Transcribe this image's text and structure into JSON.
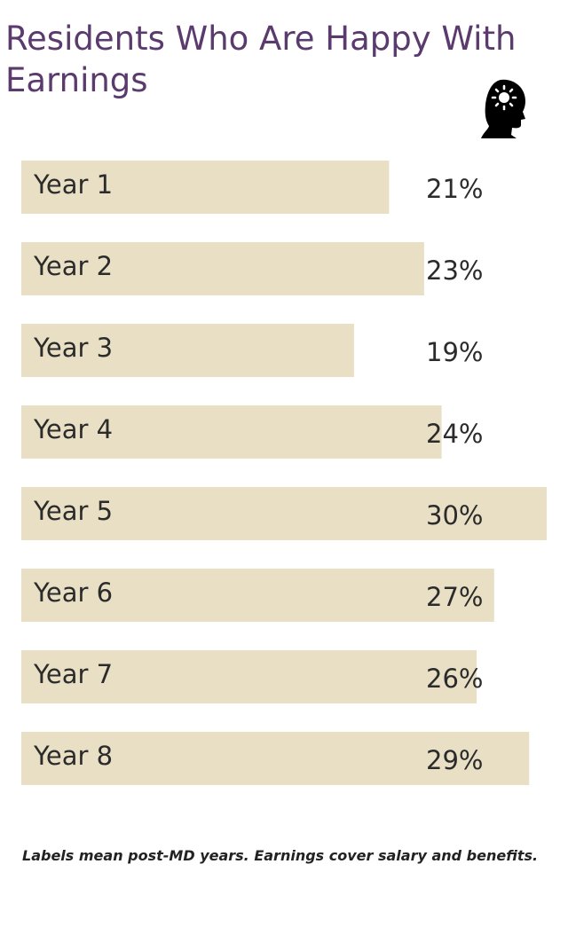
{
  "title": "Residents Who Are Happy With Earnings",
  "icon": "head-with-sun-icon",
  "colors": {
    "title": "#5b3a6e",
    "bar": "#e8dfc4",
    "text": "#2b2b2b"
  },
  "footnote": "Labels mean post-MD years. Earnings cover salary and benefits.",
  "chart_data": {
    "type": "bar",
    "orientation": "horizontal",
    "categories": [
      "Year 1",
      "Year 2",
      "Year 3",
      "Year 4",
      "Year 5",
      "Year 6",
      "Year 7",
      "Year 8"
    ],
    "values": [
      21,
      23,
      19,
      24,
      30,
      27,
      26,
      29
    ],
    "value_labels": [
      "21%",
      "23%",
      "19%",
      "24%",
      "30%",
      "27%",
      "26%",
      "29%"
    ],
    "unit": "%",
    "xlim": [
      0,
      30
    ],
    "grid": false,
    "legend": "none"
  }
}
